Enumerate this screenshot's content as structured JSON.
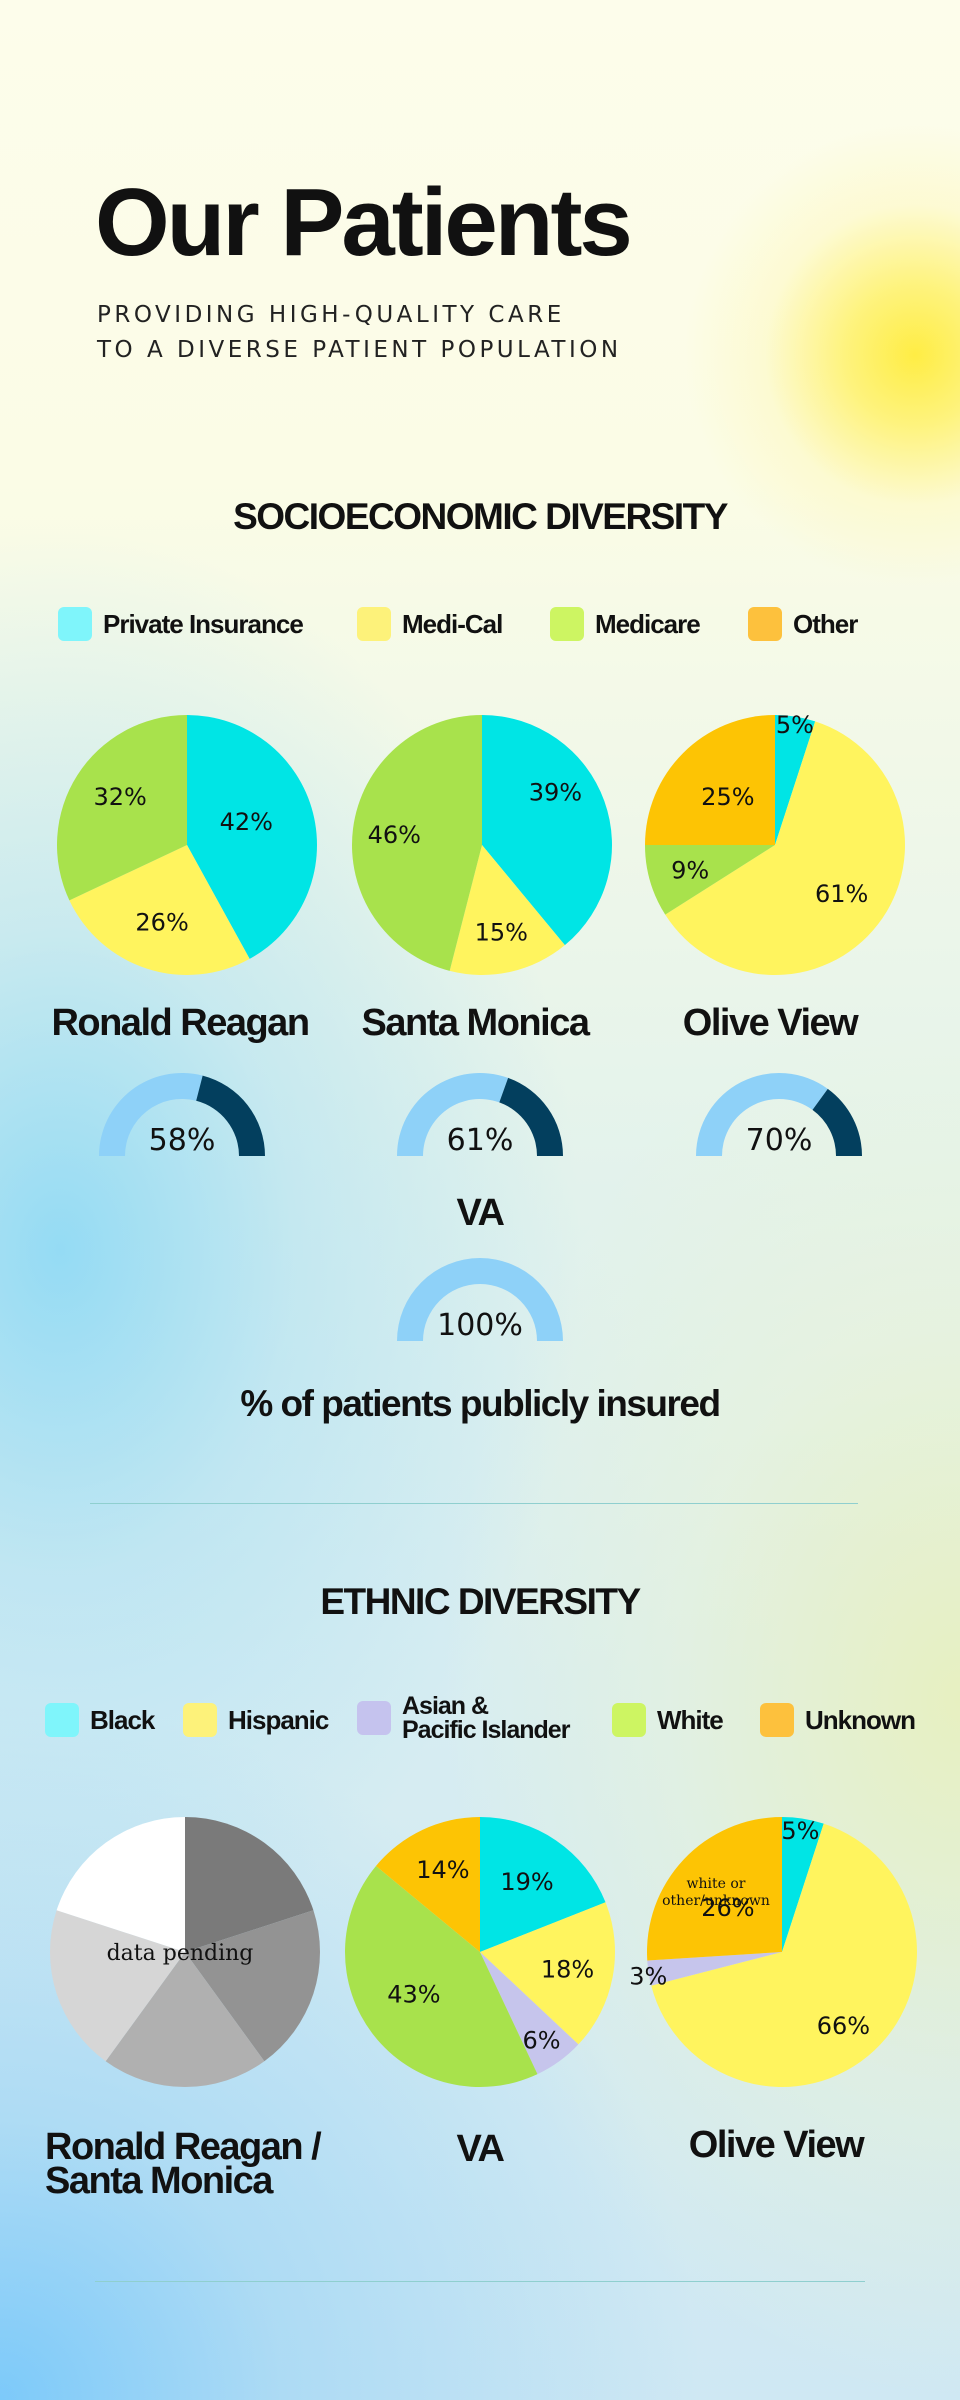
{
  "header": {
    "title": "Our Patients",
    "subtitle_line1": "PROVIDING HIGH-QUALITY CARE",
    "subtitle_line2": "TO A DIVERSE PATIENT POPULATION"
  },
  "colors": {
    "private_insurance": "#00e5e5",
    "medi_cal": "#fff45e",
    "medicare": "#a8e24c",
    "other": "#fdc404",
    "black": "#00e5e5",
    "hispanic": "#fff45e",
    "asian": "#c6c5ec",
    "white": "#a8e24c",
    "unknown": "#fdc404",
    "gauge_light": "#8ed1f8",
    "gauge_dark": "#033f5e"
  },
  "socioeconomic": {
    "title": "SOCIOECONOMIC DIVERSITY",
    "legend": [
      {
        "label": "Private Insurance",
        "color": "#7ff5fb"
      },
      {
        "label": "Medi-Cal",
        "color": "#fdf27a"
      },
      {
        "label": "Medicare",
        "color": "#cdf562"
      },
      {
        "label": "Other",
        "color": "#fdc13d"
      }
    ],
    "hospitals": [
      "Ronald Reagan",
      "Santa Monica",
      "Olive View"
    ],
    "va_label": "VA",
    "caption": "% of patients publicly insured"
  },
  "ethnic": {
    "title": "ETHNIC DIVERSITY",
    "legend": [
      {
        "label": "Black",
        "color": "#7ff5fb"
      },
      {
        "label": "Hispanic",
        "color": "#fdf27a"
      },
      {
        "label": "Asian &",
        "label2": "Pacific Islander",
        "color": "#c5c3ee"
      },
      {
        "label": "White",
        "color": "#cdf562"
      },
      {
        "label": "Unknown",
        "color": "#fdc13d"
      }
    ],
    "hospitals": {
      "rr_line1": "Ronald Reagan /",
      "rr_line2": "Santa Monica",
      "va": "VA",
      "olive": "Olive View"
    },
    "pending_text": "data pending",
    "olive_unknown_line1": "white or",
    "olive_unknown_line2": "other/unknown"
  },
  "chart_data": [
    {
      "type": "pie",
      "title": "Ronald Reagan",
      "categories": [
        "Private Insurance",
        "Medi-Cal",
        "Medicare"
      ],
      "values": [
        42,
        26,
        32
      ]
    },
    {
      "type": "pie",
      "title": "Santa Monica",
      "categories": [
        "Private Insurance",
        "Medi-Cal",
        "Medicare"
      ],
      "values": [
        39,
        15,
        46
      ]
    },
    {
      "type": "pie",
      "title": "Olive View",
      "categories": [
        "Private Insurance",
        "Medi-Cal",
        "Medicare",
        "Other"
      ],
      "values": [
        5,
        61,
        9,
        25
      ]
    },
    {
      "type": "gauge",
      "title": "% of patients publicly insured",
      "categories": [
        "Ronald Reagan",
        "Santa Monica",
        "Olive View",
        "VA"
      ],
      "values": [
        58,
        61,
        70,
        100
      ]
    },
    {
      "type": "pie",
      "title": "VA",
      "categories": [
        "Black",
        "Hispanic",
        "Asian & Pacific Islander",
        "White",
        "Unknown"
      ],
      "values": [
        19,
        18,
        6,
        43,
        14
      ]
    },
    {
      "type": "pie",
      "title": "Olive View",
      "categories": [
        "Black",
        "Hispanic",
        "Asian & Pacific Islander",
        "white or other/unknown"
      ],
      "values": [
        5,
        66,
        3,
        26
      ]
    }
  ]
}
